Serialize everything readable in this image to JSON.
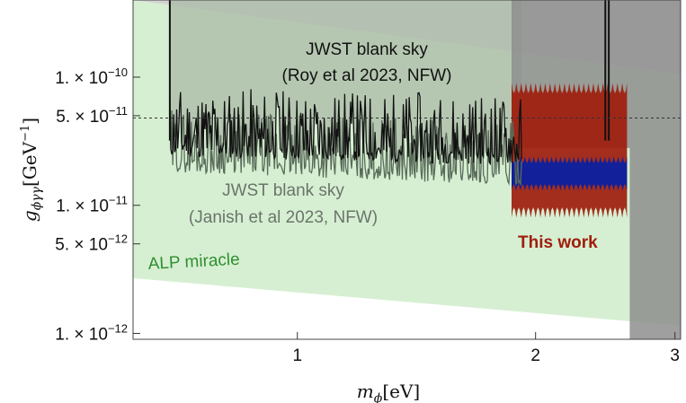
{
  "chart_data": {
    "type": "area",
    "title": "",
    "xscale": "log",
    "yscale": "log",
    "xlim": [
      0.62,
      3.05
    ],
    "ylim": [
      9e-13,
      4e-10
    ],
    "xlabel_main": "m",
    "xlabel_sub": "ϕ",
    "xlabel_unit": "[eV]",
    "ylabel_main": "g",
    "ylabel_sub": "ϕγγ",
    "ylabel_unit_open": "[GeV",
    "ylabel_unit_exp": "−1",
    "ylabel_unit_close": "]",
    "xticks": [
      {
        "value": 1,
        "label": "1"
      },
      {
        "value": 2,
        "label": "2"
      },
      {
        "value": 3,
        "label": "3"
      }
    ],
    "yticks": [
      {
        "value": 1e-12,
        "label": "1. × 10",
        "exp": "−12"
      },
      {
        "value": 5e-12,
        "label": "5. × 10",
        "exp": "−12"
      },
      {
        "value": 1e-11,
        "label": "1. × 10",
        "exp": "−11"
      },
      {
        "value": 5e-11,
        "label": "5. × 10",
        "exp": "−11"
      },
      {
        "value": 1e-10,
        "label": "1. × 10",
        "exp": "−10"
      }
    ],
    "reference_line": {
      "value": 4.8e-11,
      "style": "dashed"
    },
    "alp_band": {
      "x": [
        0.62,
        3.05
      ],
      "upper": [
        4e-10,
        1.05e-10
      ],
      "lower": [
        2.7e-12,
        1.15e-12
      ]
    },
    "series": [
      {
        "name": "JWST blank sky (Roy et al 2023, NFW)",
        "color": "#111111",
        "x_range": [
          0.69,
          1.92
        ],
        "level_start": 3e-11,
        "level_end": 2.6e-11,
        "noise_up": 0.45,
        "noise_down": 0.1,
        "seed": 11,
        "points": 360
      },
      {
        "name": "JWST blank sky (Janish et al 2023, NFW)",
        "color": "#5a6b5a",
        "x_range": [
          0.69,
          1.92
        ],
        "level_start": 2.3e-11,
        "level_end": 1.8e-11,
        "noise_up": 0.4,
        "noise_down": 0.1,
        "seed": 29,
        "points": 360
      }
    ],
    "this_work": {
      "x_range": [
        1.865,
        2.61
      ],
      "red_top": 9e-11,
      "red_bottom": 8e-12,
      "blue_top": 2.4e-11,
      "blue_bottom": 1.3e-11,
      "color_red": "#a01d0d",
      "color_blue": "#0b20a0"
    },
    "exclusion_gray": {
      "x_range": [
        1.865,
        3.05
      ],
      "bottom": 2.8e-11,
      "cutoff_x": 2.63,
      "color": "#8e8e8e"
    },
    "thin_spikes": [
      0.69,
      2.45,
      2.475
    ],
    "annotations": {
      "roy_line1": "JWST blank sky",
      "roy_line2": "(Roy et al 2023, NFW)",
      "janish_line1": "JWST blank sky",
      "janish_line2": "(Janish et al 2023, NFW)",
      "this_work": "This work",
      "alp": "ALP miracle"
    },
    "colors": {
      "alp_fill": "#d6efd2",
      "grid": "none",
      "frame": "#444444",
      "this_work_label": "#a01d0d",
      "alp_label": "#2f8f2f",
      "janish_label": "#6b746b"
    }
  }
}
